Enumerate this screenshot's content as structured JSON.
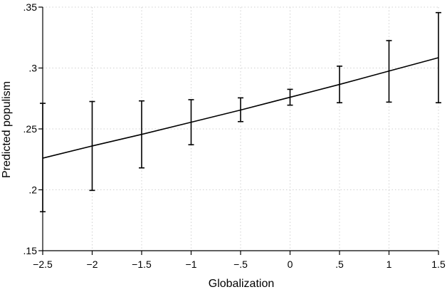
{
  "chart_data": {
    "type": "line",
    "title": "",
    "xlabel": "Globalization",
    "ylabel": "Predicted populism",
    "xlim": [
      -2.5,
      1.5
    ],
    "ylim": [
      0.15,
      0.35
    ],
    "x_ticks": [
      {
        "value": -2.5,
        "label": "−2.5"
      },
      {
        "value": -2,
        "label": "−2"
      },
      {
        "value": -1.5,
        "label": "−1.5"
      },
      {
        "value": -1,
        "label": "−1"
      },
      {
        "value": -0.5,
        "label": "−.5"
      },
      {
        "value": 0,
        "label": "0"
      },
      {
        "value": 0.5,
        "label": ".5"
      },
      {
        "value": 1,
        "label": "1"
      },
      {
        "value": 1.5,
        "label": "1.5"
      }
    ],
    "y_ticks": [
      {
        "value": 0.15,
        "label": ".15"
      },
      {
        "value": 0.2,
        "label": ".2"
      },
      {
        "value": 0.25,
        "label": ".25"
      },
      {
        "value": 0.3,
        "label": ".3"
      },
      {
        "value": 0.35,
        "label": ".35"
      }
    ],
    "grid": true,
    "legend": "none",
    "colors": {
      "line": "#000000",
      "grid": "#d0d0d0",
      "axis": "#000000"
    },
    "series": [
      {
        "x": [
          -2.5,
          -2,
          -1.5,
          -1,
          -0.5,
          0,
          0.5,
          1,
          1.5
        ],
        "y": [
          0.226,
          0.236,
          0.2455,
          0.2555,
          0.2655,
          0.276,
          0.2865,
          0.2975,
          0.3085
        ],
        "ci_lower": [
          0.182,
          0.1995,
          0.218,
          0.237,
          0.256,
          0.2695,
          0.2715,
          0.272,
          0.2715
        ],
        "ci_upper": [
          0.271,
          0.2725,
          0.273,
          0.274,
          0.2755,
          0.2825,
          0.3015,
          0.3225,
          0.3455
        ]
      }
    ]
  }
}
